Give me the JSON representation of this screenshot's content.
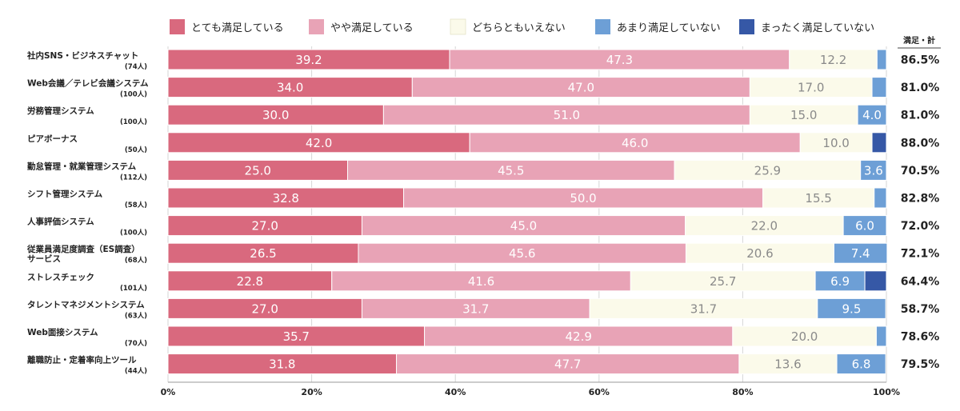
{
  "chart_data": {
    "type": "bar",
    "orientation": "horizontal",
    "stacked": true,
    "xlim": [
      0,
      100
    ],
    "x_ticks": [
      "0%",
      "20%",
      "40%",
      "60%",
      "80%",
      "100%"
    ],
    "grid": true,
    "legend_position": "top",
    "series": [
      {
        "name": "とても満足している",
        "color": "#d9697e",
        "text_color": "#ffffff"
      },
      {
        "name": "やや満足している",
        "color": "#e8a3b6",
        "text_color": "#ffffff"
      },
      {
        "name": "どちらともいえない",
        "color": "#fbfaea",
        "text_color": "#8a8a8a"
      },
      {
        "name": "あまり満足していない",
        "color": "#6d9fd6",
        "text_color": "#ffffff"
      },
      {
        "name": "まったく満足していない",
        "color": "#3658a6",
        "text_color": "#ffffff"
      }
    ],
    "summary_header": "満足・計",
    "rows": [
      {
        "label": [
          "社内SNS・ビジネスチャット"
        ],
        "count": "(74人)",
        "values": [
          39.2,
          47.3,
          12.2,
          1.3,
          0
        ],
        "labels": [
          "39.2",
          "47.3",
          "12.2",
          "",
          ""
        ],
        "total": "86.5%"
      },
      {
        "label": [
          "Web会議／テレビ会議システム"
        ],
        "count": "(100人)",
        "values": [
          34.0,
          47.0,
          17.0,
          2.0,
          0
        ],
        "labels": [
          "34.0",
          "47.0",
          "17.0",
          "",
          ""
        ],
        "total": "81.0%"
      },
      {
        "label": [
          "労務管理システム"
        ],
        "count": "(100人)",
        "values": [
          30.0,
          51.0,
          15.0,
          4.0,
          0
        ],
        "labels": [
          "30.0",
          "51.0",
          "15.0",
          "4.0",
          ""
        ],
        "total": "81.0%"
      },
      {
        "label": [
          "ピアボーナス"
        ],
        "count": "(50人)",
        "values": [
          42.0,
          46.0,
          10.0,
          0,
          2.0
        ],
        "labels": [
          "42.0",
          "46.0",
          "10.0",
          "",
          ""
        ],
        "total": "88.0%"
      },
      {
        "label": [
          "勤怠管理・就業管理システム"
        ],
        "count": "(112人)",
        "values": [
          25.0,
          45.5,
          25.9,
          3.6,
          0
        ],
        "labels": [
          "25.0",
          "45.5",
          "25.9",
          "3.6",
          ""
        ],
        "total": "70.5%"
      },
      {
        "label": [
          "シフト管理システム"
        ],
        "count": "(58人)",
        "values": [
          32.8,
          50.0,
          15.5,
          1.7,
          0
        ],
        "labels": [
          "32.8",
          "50.0",
          "15.5",
          "",
          ""
        ],
        "total": "82.8%"
      },
      {
        "label": [
          "人事評価システム"
        ],
        "count": "(100人)",
        "values": [
          27.0,
          45.0,
          22.0,
          6.0,
          0
        ],
        "labels": [
          "27.0",
          "45.0",
          "22.0",
          "6.0",
          ""
        ],
        "total": "72.0%"
      },
      {
        "label": [
          "従業員満足度調査（ES調査）",
          "サービス"
        ],
        "count": "(68人)",
        "values": [
          26.5,
          45.6,
          20.6,
          7.4,
          0
        ],
        "labels": [
          "26.5",
          "45.6",
          "20.6",
          "7.4",
          ""
        ],
        "total": "72.1%"
      },
      {
        "label": [
          "ストレスチェック"
        ],
        "count": "(101人)",
        "values": [
          22.8,
          41.6,
          25.7,
          6.9,
          3.0
        ],
        "labels": [
          "22.8",
          "41.6",
          "25.7",
          "6.9",
          ""
        ],
        "total": "64.4%"
      },
      {
        "label": [
          "タレントマネジメントシステム"
        ],
        "count": "(63人)",
        "values": [
          27.0,
          31.7,
          31.7,
          9.5,
          0
        ],
        "labels": [
          "27.0",
          "31.7",
          "31.7",
          "9.5",
          ""
        ],
        "total": "58.7%"
      },
      {
        "label": [
          "Web面接システム"
        ],
        "count": "(70人)",
        "values": [
          35.7,
          42.9,
          20.0,
          1.4,
          0
        ],
        "labels": [
          "35.7",
          "42.9",
          "20.0",
          "",
          ""
        ],
        "total": "78.6%"
      },
      {
        "label": [
          "離職防止・定着率向上ツール"
        ],
        "count": "(44人)",
        "values": [
          31.8,
          47.7,
          13.6,
          6.8,
          0
        ],
        "labels": [
          "31.8",
          "47.7",
          "13.6",
          "6.8",
          ""
        ],
        "total": "79.5%"
      }
    ]
  }
}
